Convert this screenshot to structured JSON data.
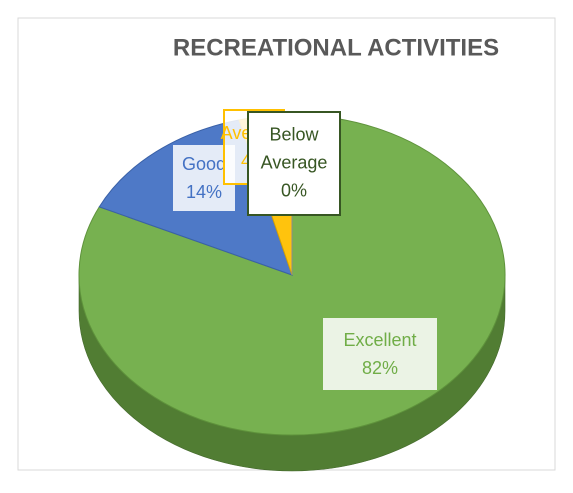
{
  "chart_data": {
    "type": "pie",
    "title": "RECREATIONAL ACTIVITIES",
    "categories": [
      "Excellent",
      "Good",
      "Average",
      "Below Average"
    ],
    "values": [
      82,
      14,
      4,
      0
    ],
    "value_labels": [
      "82%",
      "14%",
      "4%",
      "0%"
    ],
    "colors": [
      "#70ad47",
      "#4472c4",
      "#ffc000",
      "#a5a5a5"
    ],
    "label_colors": [
      "#70ad47",
      "#4472c4",
      "#ffc000",
      "#375623"
    ]
  }
}
